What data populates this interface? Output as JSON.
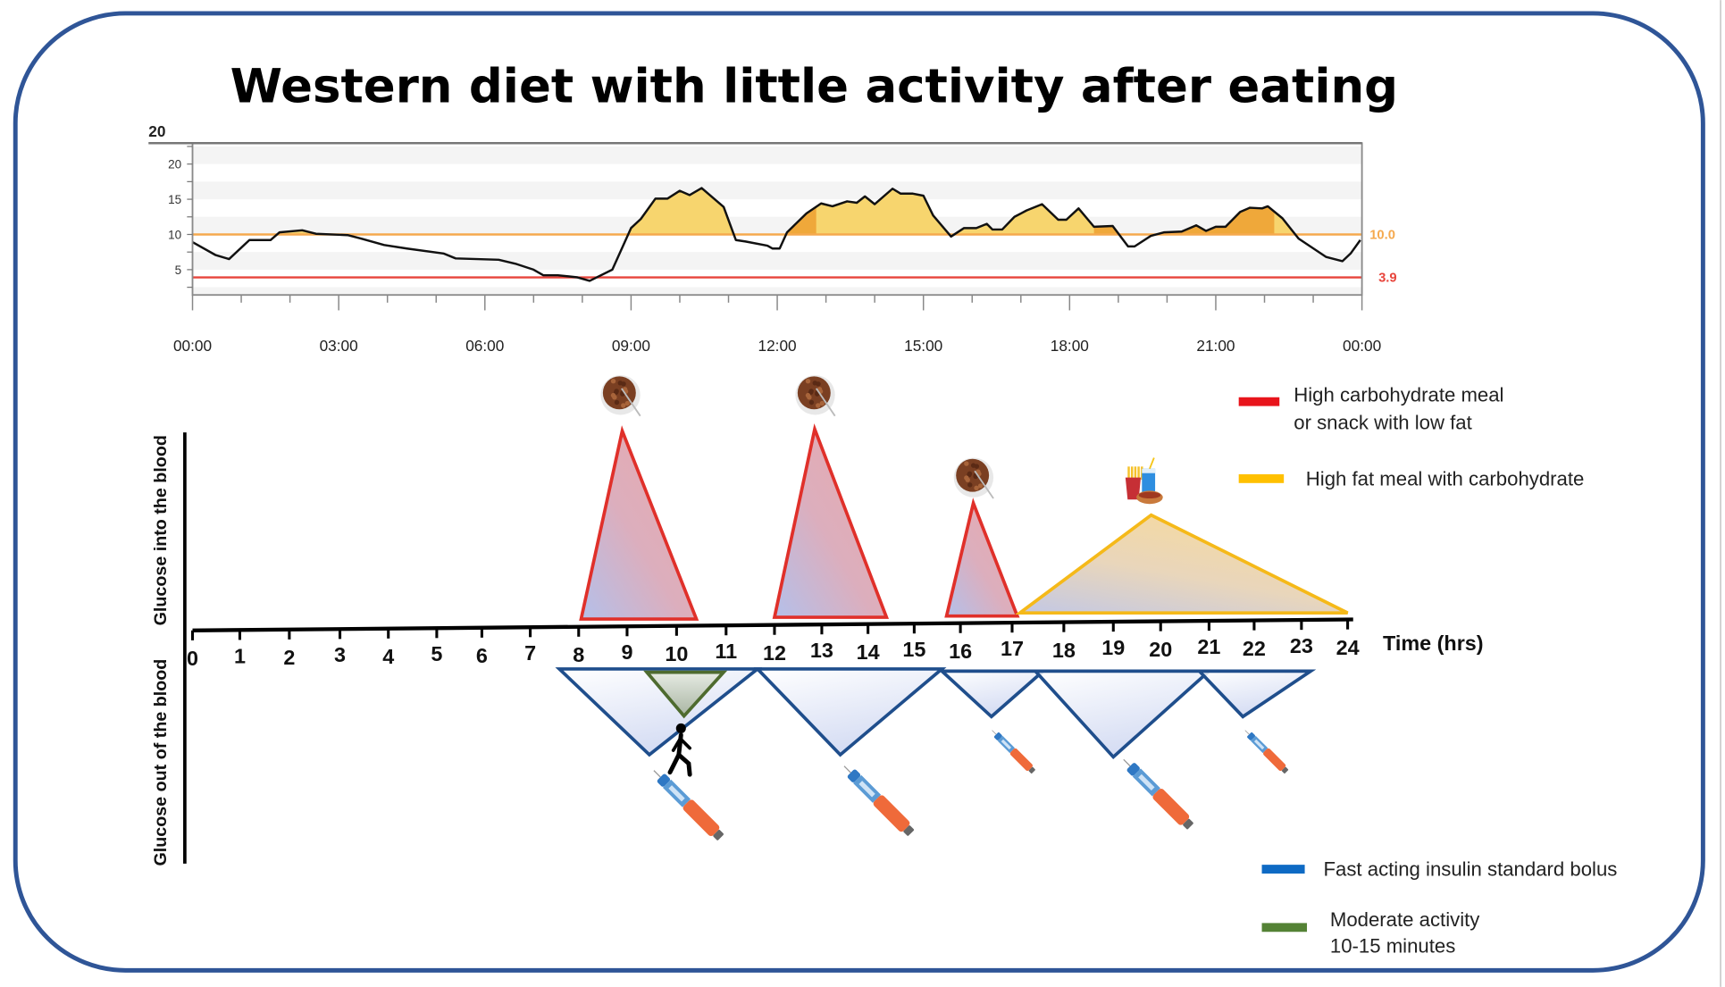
{
  "title": "Western diet with little activity after eating",
  "chart_data": {
    "type": "area",
    "stray_label": "20",
    "x_ticks": [
      "00:00",
      "03:00",
      "06:00",
      "09:00",
      "12:00",
      "15:00",
      "18:00",
      "21:00",
      "00:00"
    ],
    "y_ticks": [
      5,
      10,
      15,
      20
    ],
    "ylim": [
      1.4,
      23
    ],
    "xlim": [
      "00:00",
      "24:00"
    ],
    "grid": "alternating horizontal bands every 2.5",
    "thresholds": [
      {
        "label": "10.0",
        "value": 10.0,
        "color": "#f5a94e"
      },
      {
        "label": "3.9",
        "value": 3.9,
        "color": "#e8453c"
      }
    ],
    "fill_above_high_color": "#f7d56e",
    "fill_above_high_dark_color": "#efa83a",
    "dark_fill_ranges": [
      [
        "12:12",
        "12:48"
      ],
      [
        "18:30",
        "19:06"
      ],
      [
        "19:54",
        "22:12"
      ]
    ],
    "line_color": "#111111",
    "points": [
      [
        "00:00",
        8.9
      ],
      [
        "00:28",
        7.1
      ],
      [
        "00:45",
        6.5
      ],
      [
        "01:10",
        9.2
      ],
      [
        "01:36",
        9.2
      ],
      [
        "01:47",
        10.3
      ],
      [
        "02:15",
        10.6
      ],
      [
        "02:32",
        10.1
      ],
      [
        "03:11",
        9.9
      ],
      [
        "03:28",
        9.4
      ],
      [
        "03:56",
        8.5
      ],
      [
        "04:24",
        8.0
      ],
      [
        "05:09",
        7.3
      ],
      [
        "05:24",
        6.6
      ],
      [
        "06:17",
        6.4
      ],
      [
        "06:39",
        5.8
      ],
      [
        "07:00",
        5.0
      ],
      [
        "07:12",
        4.2
      ],
      [
        "07:30",
        4.2
      ],
      [
        "07:54",
        3.9
      ],
      [
        "08:09",
        3.4
      ],
      [
        "08:37",
        5.0
      ],
      [
        "09:00",
        10.9
      ],
      [
        "09:12",
        12.2
      ],
      [
        "09:30",
        15.1
      ],
      [
        "09:45",
        15.1
      ],
      [
        "10:00",
        16.2
      ],
      [
        "10:12",
        15.6
      ],
      [
        "10:27",
        16.6
      ],
      [
        "10:54",
        13.9
      ],
      [
        "11:09",
        9.2
      ],
      [
        "11:21",
        9.0
      ],
      [
        "11:48",
        8.4
      ],
      [
        "11:54",
        8.0
      ],
      [
        "12:03",
        8.0
      ],
      [
        "12:12",
        10.3
      ],
      [
        "12:36",
        13.0
      ],
      [
        "12:54",
        14.4
      ],
      [
        "13:08",
        14.0
      ],
      [
        "13:26",
        14.7
      ],
      [
        "13:38",
        14.5
      ],
      [
        "13:48",
        15.4
      ],
      [
        "14:00",
        14.3
      ],
      [
        "14:22",
        16.5
      ],
      [
        "14:32",
        15.8
      ],
      [
        "14:47",
        15.8
      ],
      [
        "15:00",
        15.5
      ],
      [
        "15:12",
        12.7
      ],
      [
        "15:34",
        9.7
      ],
      [
        "15:50",
        10.9
      ],
      [
        "16:05",
        10.9
      ],
      [
        "16:18",
        11.5
      ],
      [
        "16:25",
        10.7
      ],
      [
        "16:37",
        10.7
      ],
      [
        "16:52",
        12.5
      ],
      [
        "17:07",
        13.4
      ],
      [
        "17:26",
        14.3
      ],
      [
        "17:46",
        12.1
      ],
      [
        "17:56",
        12.1
      ],
      [
        "18:11",
        13.7
      ],
      [
        "18:30",
        11.1
      ],
      [
        "18:53",
        11.2
      ],
      [
        "19:12",
        8.3
      ],
      [
        "19:20",
        8.3
      ],
      [
        "19:40",
        9.8
      ],
      [
        "19:56",
        10.3
      ],
      [
        "20:18",
        10.4
      ],
      [
        "20:36",
        11.3
      ],
      [
        "20:48",
        10.5
      ],
      [
        "21:00",
        11.1
      ],
      [
        "21:12",
        11.1
      ],
      [
        "21:30",
        13.2
      ],
      [
        "21:42",
        13.8
      ],
      [
        "21:57",
        13.7
      ],
      [
        "22:04",
        14.0
      ],
      [
        "22:22",
        12.3
      ],
      [
        "22:42",
        9.4
      ],
      [
        "23:16",
        6.8
      ],
      [
        "23:36",
        6.2
      ],
      [
        "23:46",
        7.3
      ],
      [
        "23:58",
        9.2
      ]
    ]
  },
  "diagram": {
    "x_label": "Time (hrs)",
    "y_label_top": "Glucose into the blood",
    "y_label_bottom": "Glucose out of the blood",
    "hour_ticks": [
      "0",
      "1",
      "2",
      "3",
      "4",
      "5",
      "6",
      "7",
      "8",
      "9",
      "10",
      "11",
      "12",
      "13",
      "14",
      "15",
      "16",
      "17",
      "18",
      "19",
      "20",
      "21",
      "22",
      "23",
      "24"
    ],
    "meals": [
      {
        "kind": "high-carb",
        "icon": "cereal-bowl-icon",
        "start": 8.05,
        "peak": 8.9,
        "end": 10.4,
        "magnitude": 1.0
      },
      {
        "kind": "high-carb",
        "icon": "cereal-bowl-icon",
        "start": 12.0,
        "peak": 12.85,
        "end": 14.4,
        "magnitude": 1.0
      },
      {
        "kind": "high-carb",
        "icon": "cereal-bowl-icon",
        "start": 15.7,
        "peak": 16.25,
        "end": 17.1,
        "magnitude": 0.6
      },
      {
        "kind": "high-fat",
        "icon": "fast-food-icon",
        "start": 17.15,
        "peak": 19.8,
        "end": 24.0,
        "magnitude": 0.52
      }
    ],
    "insulin": [
      {
        "start": 7.6,
        "peak": 9.45,
        "end": 11.65,
        "magnitude": 1.0,
        "pen": "large"
      },
      {
        "start": 11.65,
        "peak": 13.4,
        "end": 15.6,
        "magnitude": 1.0,
        "pen": "large"
      },
      {
        "start": 15.6,
        "peak": 16.6,
        "end": 17.6,
        "magnitude": 0.53,
        "pen": "small"
      },
      {
        "start": 17.45,
        "peak": 19.0,
        "end": 21.0,
        "magnitude": 1.0,
        "pen": "large"
      },
      {
        "start": 20.8,
        "peak": 21.75,
        "end": 23.2,
        "magnitude": 0.53,
        "pen": "small"
      }
    ],
    "activity": [
      {
        "start": 9.4,
        "peak": 10.15,
        "end": 10.95,
        "magnitude": 0.51,
        "icon": "walking-person-icon"
      }
    ],
    "colors": {
      "carb": "#e0302a",
      "fat": "#f5b919",
      "insulin": "#1f4e8c",
      "activity": "#4e6b2f",
      "border": "#2f5597"
    }
  },
  "legend": {
    "carb_line1": "High carbohydrate meal",
    "carb_line2": "or snack with low fat",
    "fat": "High fat meal with carbohydrate",
    "insulin": "Fast acting insulin standard bolus",
    "activity_line1": "Moderate activity",
    "activity_line2": "10-15 minutes",
    "carb_color": "#e8141b",
    "fat_color": "#ffc000",
    "insulin_color": "#0e6ac4",
    "activity_color": "#548235"
  }
}
